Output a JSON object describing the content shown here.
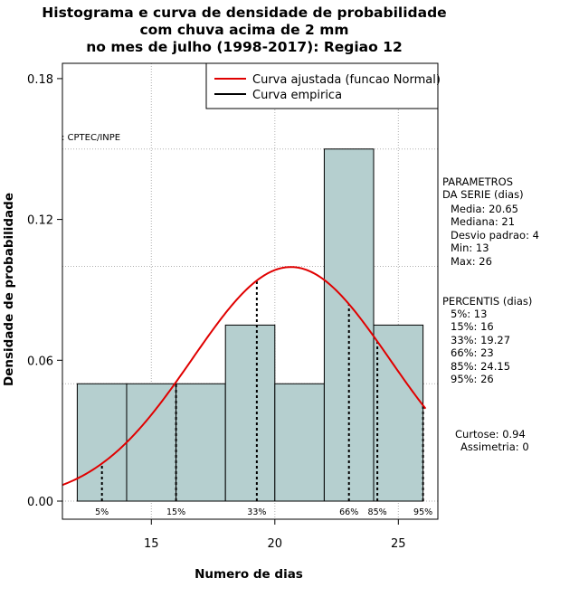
{
  "chart_data": {
    "type": "bar",
    "title": [
      "Histograma e curva de densidade de probabilidade",
      "com chuva acima de 2 mm",
      "no mes de julho (1998-2017): Regiao 12"
    ],
    "xlabel": "Numero de dias",
    "ylabel": "Densidade de probabilidade",
    "xlim": [
      11.4,
      26.6
    ],
    "ylim": [
      0,
      0.18
    ],
    "x_ticks": [
      15,
      20,
      25
    ],
    "y_ticks": [
      0.0,
      0.06,
      0.12,
      0.18
    ],
    "y_tick_labels": [
      "0.00",
      "0.06",
      "0.12",
      "0.18"
    ],
    "grid": true,
    "bins": [
      {
        "from": 12,
        "to": 14,
        "density": 0.05
      },
      {
        "from": 14,
        "to": 16,
        "density": 0.05
      },
      {
        "from": 16,
        "to": 18,
        "density": 0.05
      },
      {
        "from": 18,
        "to": 20,
        "density": 0.075
      },
      {
        "from": 20,
        "to": 22,
        "density": 0.05
      },
      {
        "from": 22,
        "to": 24,
        "density": 0.15
      },
      {
        "from": 24,
        "to": 26,
        "density": 0.075
      }
    ],
    "bar_color": "#b5cfcf",
    "normal_fit": {
      "mean": 20.65,
      "sd": 4,
      "color": "#e00000"
    },
    "percentile_lines": [
      {
        "label": "5%",
        "x": 13
      },
      {
        "label": "15%",
        "x": 16
      },
      {
        "label": "33%",
        "x": 19.27
      },
      {
        "label": "66%",
        "x": 23
      },
      {
        "label": "85%",
        "x": 24.15
      },
      {
        "label": "95%",
        "x": 26
      }
    ],
    "legend": [
      {
        "label": "Curva ajustada (funcao Normal)",
        "color": "#e00000"
      },
      {
        "label": "Curva empirica",
        "color": "#000000"
      }
    ],
    "watermark": "CPTEC/INPE"
  },
  "parametros": {
    "header": [
      "PARAMETROS",
      "DA SERIE (dias)"
    ],
    "lines": [
      "Media: 20.65",
      "Mediana: 21",
      "Desvio padrao: 4",
      "Min: 13",
      "Max: 26"
    ]
  },
  "percentis": {
    "header": "PERCENTIS (dias)",
    "lines": [
      "5%: 13",
      "15%: 16",
      "33%: 19.27",
      "66%: 23",
      "85%: 24.15",
      "95%: 26"
    ]
  },
  "shape": {
    "curtose": "Curtose: 0.94",
    "assimetria": "Assimetria: 0"
  }
}
